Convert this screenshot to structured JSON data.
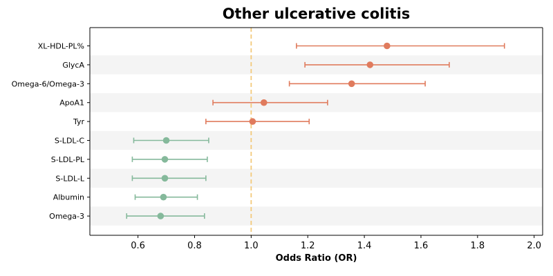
{
  "chart_data": {
    "type": "scatter",
    "subtype": "forest-plot",
    "title": "Other ulcerative colitis",
    "xlabel": "Odds Ratio (OR)",
    "ylabel": "",
    "xlim": [
      0.43,
      2.03
    ],
    "xticks": [
      0.6,
      0.8,
      1.0,
      1.2,
      1.4,
      1.6,
      1.8,
      2.0
    ],
    "xtick_labels": [
      "0.6",
      "0.8",
      "1.0",
      "1.2",
      "1.4",
      "1.6",
      "1.8",
      "2.0"
    ],
    "reference_line": 1.0,
    "reference_line_style": "dashed",
    "grid": false,
    "alternating_row_shading": true,
    "rows": [
      {
        "label": "XL-HDL-PL%",
        "or": 1.48,
        "lower": 1.16,
        "upper": 1.895,
        "color": "#e07b5d"
      },
      {
        "label": "GlycA",
        "or": 1.42,
        "lower": 1.19,
        "upper": 1.7,
        "color": "#e07b5d"
      },
      {
        "label": "Omega-6/Omega-3",
        "or": 1.355,
        "lower": 1.135,
        "upper": 1.615,
        "color": "#e07b5d"
      },
      {
        "label": "ApoA1",
        "or": 1.045,
        "lower": 0.865,
        "upper": 1.27,
        "color": "#e07b5d"
      },
      {
        "label": "Tyr",
        "or": 1.005,
        "lower": 0.84,
        "upper": 1.205,
        "color": "#e07b5d"
      },
      {
        "label": "S-LDL-C",
        "or": 0.7,
        "lower": 0.585,
        "upper": 0.85,
        "color": "#85b99b"
      },
      {
        "label": "S-LDL-PL",
        "or": 0.695,
        "lower": 0.58,
        "upper": 0.845,
        "color": "#85b99b"
      },
      {
        "label": "S-LDL-L",
        "or": 0.695,
        "lower": 0.58,
        "upper": 0.84,
        "color": "#85b99b"
      },
      {
        "label": "Albumin",
        "or": 0.69,
        "lower": 0.59,
        "upper": 0.81,
        "color": "#85b99b"
      },
      {
        "label": "Omega-3",
        "or": 0.68,
        "lower": 0.56,
        "upper": 0.835,
        "color": "#85b99b"
      }
    ],
    "colors": {
      "risk": "#e07b5d",
      "protective": "#85b99b",
      "reference_line": "#f3c97a",
      "row_shade": "#f4f4f4",
      "axis": "#000000"
    }
  }
}
